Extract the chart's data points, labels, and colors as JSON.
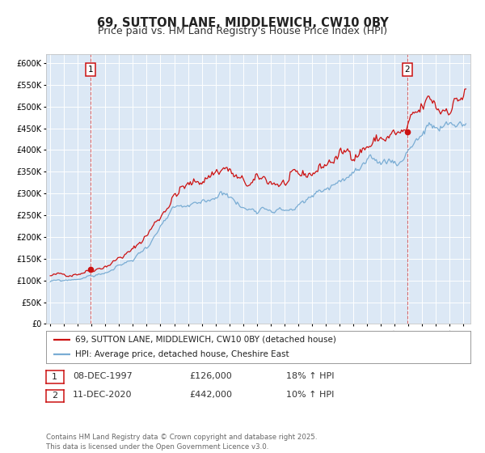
{
  "title": "69, SUTTON LANE, MIDDLEWICH, CW10 0BY",
  "subtitle": "Price paid vs. HM Land Registry's House Price Index (HPI)",
  "ylim": [
    0,
    620000
  ],
  "yticks": [
    0,
    50000,
    100000,
    150000,
    200000,
    250000,
    300000,
    350000,
    400000,
    450000,
    500000,
    550000,
    600000
  ],
  "ytick_labels": [
    "£0",
    "£50K",
    "£100K",
    "£150K",
    "£200K",
    "£250K",
    "£300K",
    "£350K",
    "£400K",
    "£450K",
    "£500K",
    "£550K",
    "£600K"
  ],
  "xlim": [
    1994.7,
    2025.5
  ],
  "xticks": [
    1995,
    1996,
    1997,
    1998,
    1999,
    2000,
    2001,
    2002,
    2003,
    2004,
    2005,
    2006,
    2007,
    2008,
    2009,
    2010,
    2011,
    2012,
    2013,
    2014,
    2015,
    2016,
    2017,
    2018,
    2019,
    2020,
    2021,
    2022,
    2023,
    2024,
    2025
  ],
  "background_color": "#ffffff",
  "plot_bg_color": "#dce8f5",
  "grid_color": "#ffffff",
  "red_line_color": "#cc1111",
  "blue_line_color": "#7aadd4",
  "vline_color": "#cc1111",
  "marker1_x": 1997.92,
  "marker1_y": 126000,
  "marker2_x": 2020.92,
  "marker2_y": 442000,
  "legend_label_red": "69, SUTTON LANE, MIDDLEWICH, CW10 0BY (detached house)",
  "legend_label_blue": "HPI: Average price, detached house, Cheshire East",
  "table_row1": [
    "1",
    "08-DEC-1997",
    "£126,000",
    "18% ↑ HPI"
  ],
  "table_row2": [
    "2",
    "11-DEC-2020",
    "£442,000",
    "10% ↑ HPI"
  ],
  "footer": "Contains HM Land Registry data © Crown copyright and database right 2025.\nThis data is licensed under the Open Government Licence v3.0.",
  "title_fontsize": 10.5,
  "subtitle_fontsize": 9,
  "tick_fontsize": 7,
  "legend_fontsize": 7.5,
  "table_fontsize": 8
}
